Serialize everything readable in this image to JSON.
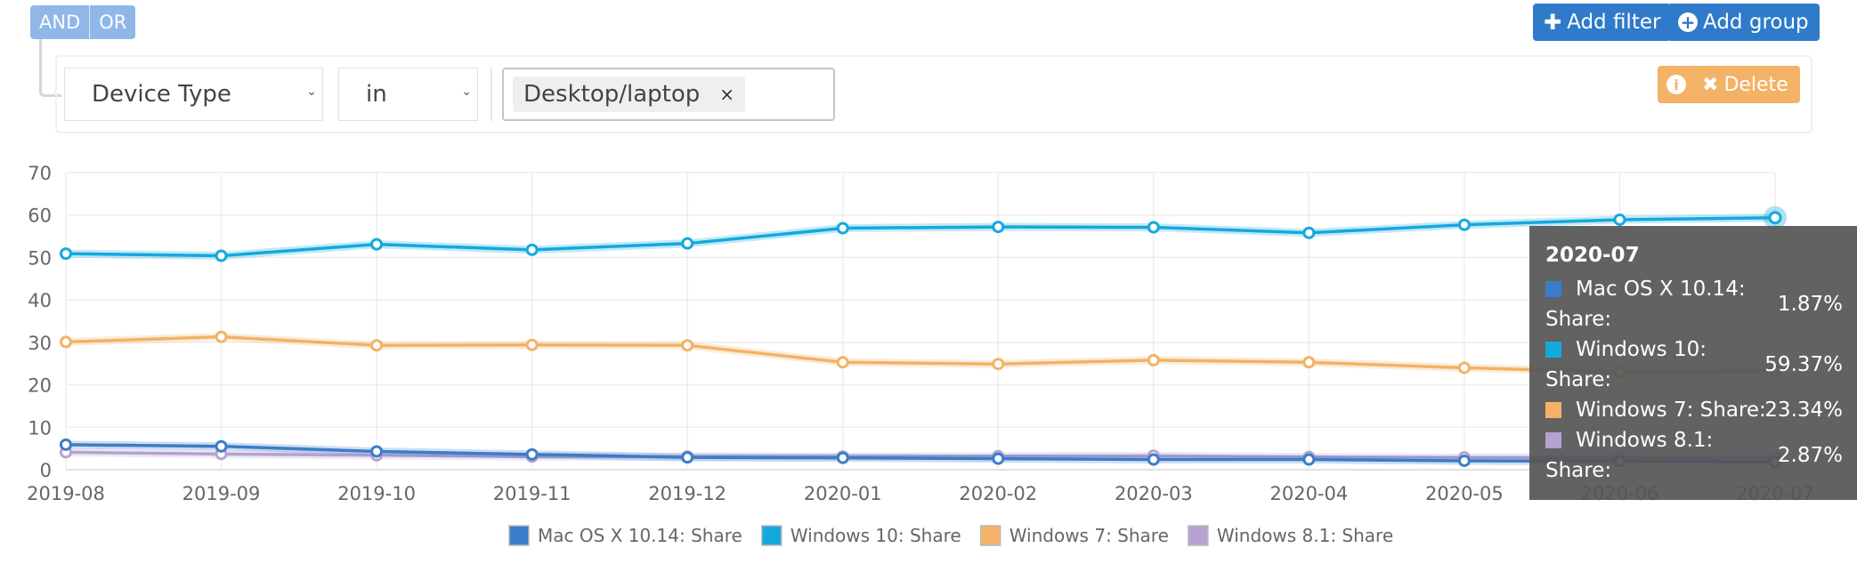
{
  "filters": {
    "and_label": "AND",
    "or_label": "OR",
    "add_filter_label": "Add filter",
    "add_group_label": "Add group",
    "field_value": "Device Type",
    "operator_value": "in",
    "tag_value": "Desktop/laptop",
    "tag_remove": "×",
    "delete_label": "Delete"
  },
  "chart_data": {
    "type": "line",
    "categories": [
      "2019-08",
      "2019-09",
      "2019-10",
      "2019-11",
      "2019-12",
      "2020-01",
      "2020-02",
      "2020-03",
      "2020-04",
      "2020-05",
      "2020-06",
      "2020-07"
    ],
    "y_ticks": [
      0,
      10,
      20,
      30,
      40,
      50,
      60,
      70
    ],
    "ylim": [
      0,
      70
    ],
    "grid": true,
    "legend_placement": "bottom",
    "series": [
      {
        "name": "Mac OS X 10.14: Share",
        "color": "#3b7dc8",
        "values": [
          5.9,
          5.5,
          4.3,
          3.6,
          2.9,
          2.8,
          2.6,
          2.4,
          2.4,
          2.1,
          2.0,
          1.87
        ]
      },
      {
        "name": "Windows 10: Share",
        "color": "#14a9dd",
        "values": [
          50.9,
          50.4,
          53.1,
          51.8,
          53.3,
          56.9,
          57.2,
          57.1,
          55.8,
          57.7,
          58.9,
          59.37
        ]
      },
      {
        "name": "Windows 7: Share",
        "color": "#f3b266",
        "values": [
          30.1,
          31.3,
          29.3,
          29.4,
          29.3,
          25.3,
          24.9,
          25.8,
          25.3,
          24.0,
          23.0,
          23.34
        ]
      },
      {
        "name": "Windows 8.1: Share",
        "color": "#b5a2d1",
        "values": [
          4.1,
          3.7,
          3.4,
          3.1,
          3.1,
          3.1,
          3.2,
          3.3,
          3.0,
          2.9,
          2.9,
          2.87
        ]
      }
    ],
    "tooltip": {
      "date": "2020-07",
      "rows": [
        {
          "label": "Mac OS X 10.14: Share:",
          "value": "1.87%",
          "color": "#3b7dc8"
        },
        {
          "label": "Windows 10: Share:",
          "value": "59.37%",
          "color": "#14a9dd"
        },
        {
          "label": "Windows 7: Share:",
          "value": "23.34%",
          "color": "#f3b266"
        },
        {
          "label": "Windows 8.1: Share:",
          "value": "2.87%",
          "color": "#b5a2d1"
        }
      ]
    }
  }
}
